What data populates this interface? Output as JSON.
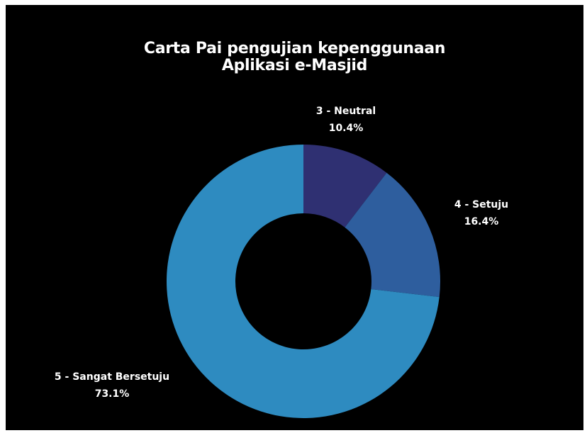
{
  "chart_data": {
    "type": "pie",
    "variant": "donut",
    "title": [
      "Carta Pai pengujian kepenggunaan",
      "Aplikasi e-Masjid"
    ],
    "slices": [
      {
        "label": "3 - Neutral",
        "value": 10.4,
        "value_label": "10.4%",
        "color": "#2f3072"
      },
      {
        "label": "4 - Setuju",
        "value": 16.4,
        "value_label": "16.4%",
        "color": "#2e5e9e"
      },
      {
        "label": "5 - Sangat Bersetuju",
        "value": 73.1,
        "value_label": "73.1%",
        "color": "#2e8bc0"
      }
    ],
    "legend": "none"
  }
}
